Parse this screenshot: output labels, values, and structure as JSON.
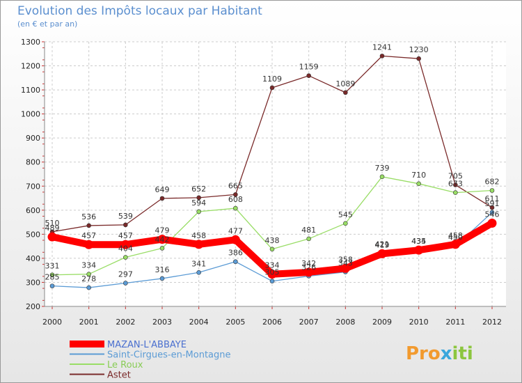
{
  "chart_data": {
    "type": "line",
    "title": "Evolution des Impôts locaux par Habitant",
    "subtitle": "(en € et par an)",
    "x": [
      "2000",
      "2001",
      "2002",
      "2003",
      "2004",
      "2005",
      "2006",
      "2007",
      "2008",
      "2009",
      "2010",
      "2011",
      "2012"
    ],
    "ylim": [
      200,
      1300
    ],
    "yticks": [
      200,
      300,
      400,
      500,
      600,
      700,
      800,
      900,
      1000,
      1100,
      1200,
      1300
    ],
    "grid": true,
    "legend_position": "bottom-left",
    "series": [
      {
        "name": "MAZAN-L'ABBAYE",
        "color": "#ff0000",
        "label_color": "#4a6fcf",
        "values": [
          489,
          457,
          457,
          479,
          458,
          477,
          334,
          342,
          358,
          419,
          434,
          458,
          546
        ]
      },
      {
        "name": "Saint-Cirgues-en-Montagne",
        "color": "#5b9bd5",
        "label_color": "#5b9bd5",
        "values": [
          285,
          278,
          297,
          316,
          341,
          386,
          305,
          326,
          343,
          421,
          435,
          450,
          591
        ]
      },
      {
        "name": "Le Roux",
        "color": "#99dd66",
        "label_color": "#88cc55",
        "values": [
          331,
          334,
          404,
          442,
          594,
          608,
          438,
          481,
          545,
          739,
          710,
          673,
          682
        ]
      },
      {
        "name": "Astet",
        "color": "#7a2a2a",
        "label_color": "#7a2a2a",
        "values": [
          510,
          536,
          539,
          649,
          652,
          665,
          1109,
          1159,
          1089,
          1241,
          1230,
          705,
          611
        ]
      }
    ]
  },
  "logo": {
    "text": "Proxiti"
  }
}
